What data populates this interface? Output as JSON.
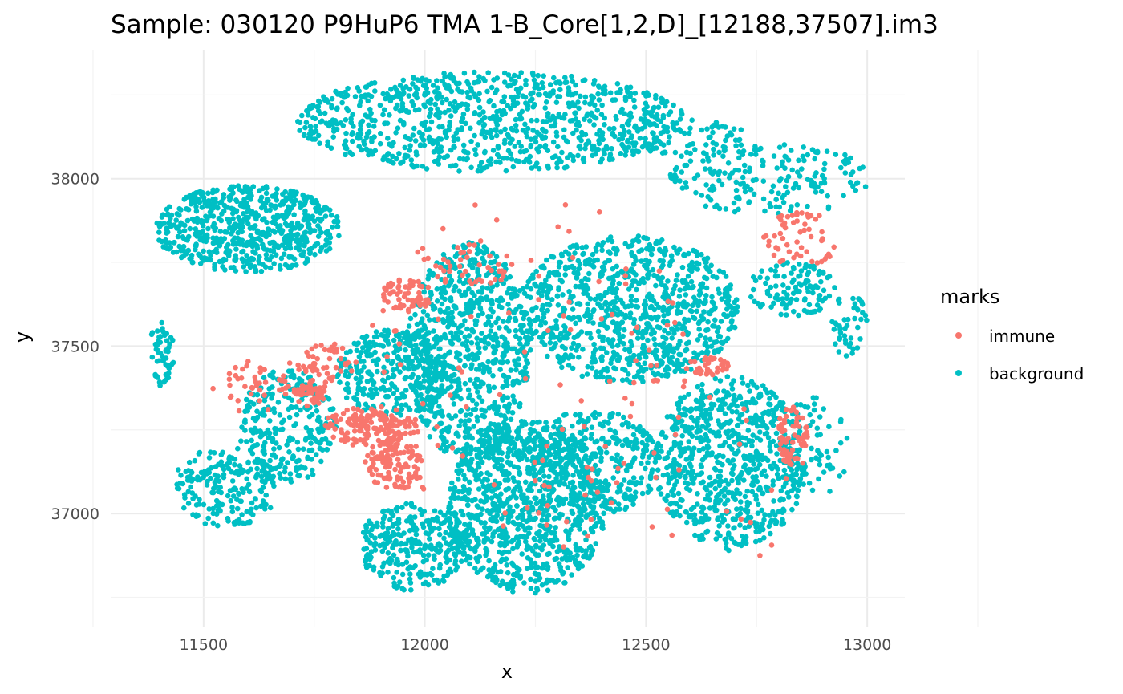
{
  "chart_data": {
    "type": "scatter",
    "title": "Sample: 030120 P9HuP6 TMA 1-B_Core[1,2,D]_[12188,37507].im3",
    "xlabel": "x",
    "ylabel": "y",
    "xlim": [
      11290,
      13085
    ],
    "ylim": [
      36660,
      38385
    ],
    "x_ticks": [
      11500,
      12000,
      12500,
      13000
    ],
    "y_ticks": [
      37000,
      37500,
      38000
    ],
    "x_tick_labels": [
      "11500",
      "12000",
      "12500",
      "13000"
    ],
    "y_tick_labels": [
      "37000",
      "37500",
      "38000"
    ],
    "grid": true,
    "legend": {
      "title": "marks",
      "placement": "right",
      "entries": [
        {
          "label": "immune",
          "color": "#F8766D"
        },
        {
          "label": "background",
          "color": "#00BFC4"
        }
      ]
    },
    "series": [
      {
        "name": "immune",
        "color": "#F8766D",
        "clusters": [
          {
            "cx": 11880,
            "cy": 37260,
            "rx": 110,
            "ry": 60,
            "n": 160
          },
          {
            "cx": 11930,
            "cy": 37150,
            "rx": 70,
            "ry": 80,
            "n": 110
          },
          {
            "cx": 11740,
            "cy": 37360,
            "rx": 40,
            "ry": 40,
            "n": 40
          },
          {
            "cx": 11770,
            "cy": 37450,
            "rx": 80,
            "ry": 60,
            "n": 50
          },
          {
            "cx": 11960,
            "cy": 37650,
            "rx": 60,
            "ry": 50,
            "n": 60
          },
          {
            "cx": 12830,
            "cy": 37230,
            "rx": 35,
            "ry": 90,
            "n": 70
          },
          {
            "cx": 12640,
            "cy": 37440,
            "rx": 50,
            "ry": 30,
            "n": 35
          },
          {
            "cx": 12850,
            "cy": 37820,
            "rx": 90,
            "ry": 80,
            "n": 55
          },
          {
            "cx": 12100,
            "cy": 37750,
            "rx": 110,
            "ry": 70,
            "n": 40
          },
          {
            "cx": 11610,
            "cy": 37380,
            "rx": 90,
            "ry": 80,
            "n": 40
          },
          {
            "cx": 12230,
            "cy": 37450,
            "rx": 380,
            "ry": 500,
            "n": 90
          },
          {
            "cx": 12560,
            "cy": 37100,
            "rx": 300,
            "ry": 350,
            "n": 40
          }
        ]
      },
      {
        "name": "background",
        "color": "#00BFC4",
        "clusters": [
          {
            "cx": 12150,
            "cy": 38170,
            "rx": 440,
            "ry": 150,
            "n": 900
          },
          {
            "cx": 11600,
            "cy": 37850,
            "rx": 210,
            "ry": 130,
            "n": 640
          },
          {
            "cx": 11405,
            "cy": 37480,
            "rx": 28,
            "ry": 110,
            "n": 55
          },
          {
            "cx": 11550,
            "cy": 37080,
            "rx": 120,
            "ry": 120,
            "n": 190
          },
          {
            "cx": 11690,
            "cy": 37260,
            "rx": 110,
            "ry": 170,
            "n": 260
          },
          {
            "cx": 11930,
            "cy": 37420,
            "rx": 130,
            "ry": 130,
            "n": 300
          },
          {
            "cx": 11970,
            "cy": 36900,
            "rx": 120,
            "ry": 130,
            "n": 290
          },
          {
            "cx": 12100,
            "cy": 37480,
            "rx": 140,
            "ry": 330,
            "n": 760
          },
          {
            "cx": 12230,
            "cy": 37020,
            "rx": 180,
            "ry": 260,
            "n": 920
          },
          {
            "cx": 12460,
            "cy": 37610,
            "rx": 250,
            "ry": 220,
            "n": 880
          },
          {
            "cx": 12380,
            "cy": 37150,
            "rx": 150,
            "ry": 160,
            "n": 340
          },
          {
            "cx": 12690,
            "cy": 37150,
            "rx": 170,
            "ry": 260,
            "n": 720
          },
          {
            "cx": 12780,
            "cy": 38000,
            "rx": 230,
            "ry": 110,
            "n": 200
          },
          {
            "cx": 12830,
            "cy": 37670,
            "rx": 100,
            "ry": 80,
            "n": 110
          },
          {
            "cx": 12960,
            "cy": 37560,
            "rx": 40,
            "ry": 100,
            "n": 45
          },
          {
            "cx": 12880,
            "cy": 37200,
            "rx": 80,
            "ry": 150,
            "n": 70
          },
          {
            "cx": 12600,
            "cy": 38120,
            "rx": 130,
            "ry": 60,
            "n": 60
          }
        ]
      }
    ]
  }
}
